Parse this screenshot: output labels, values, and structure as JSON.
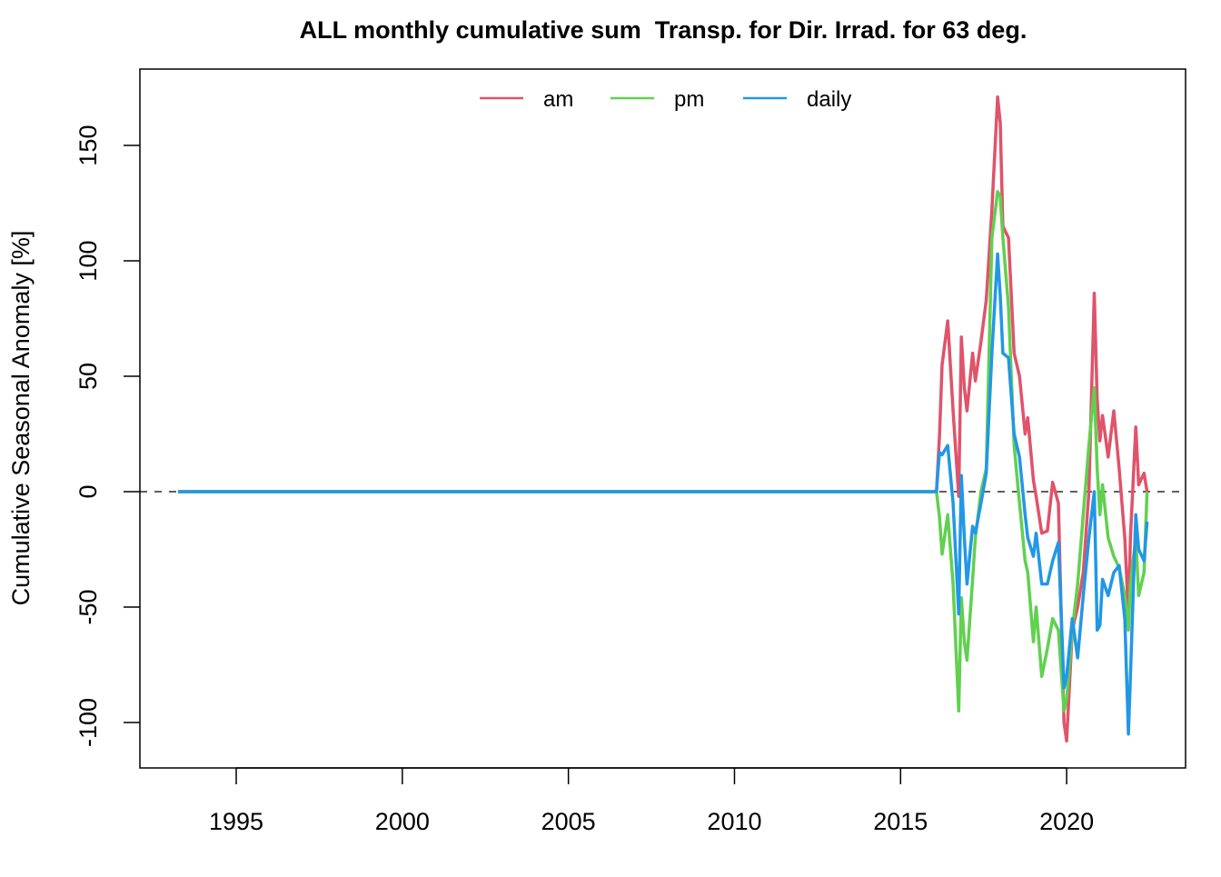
{
  "chart_data": {
    "type": "line",
    "title": "ALL monthly cumulative sum  Transp. for Dir. Irrad. for 63 deg.",
    "y_label": "Cumulative Seasonal Anomaly [%]",
    "x": [
      1993.25,
      2016.08,
      2016.17,
      2016.25,
      2016.42,
      2016.58,
      2016.75,
      2016.83,
      2016.92,
      2017.0,
      2017.17,
      2017.25,
      2017.42,
      2017.58,
      2017.75,
      2017.92,
      2018.0,
      2018.08,
      2018.25,
      2018.42,
      2018.58,
      2018.75,
      2018.83,
      2019.0,
      2019.08,
      2019.25,
      2019.42,
      2019.58,
      2019.75,
      2019.92,
      2020.0,
      2020.17,
      2020.33,
      2020.5,
      2020.67,
      2020.83,
      2020.92,
      2021.0,
      2021.08,
      2021.25,
      2021.42,
      2021.58,
      2021.75,
      2021.86,
      2021.92,
      2022.08,
      2022.17,
      2022.33,
      2022.42
    ],
    "series": [
      {
        "name": "am",
        "color": "#df536b",
        "values": [
          0,
          0,
          24,
          55,
          74,
          35,
          -2,
          67,
          45,
          35,
          60,
          48,
          65,
          83,
          122,
          171,
          160,
          115,
          110,
          60,
          50,
          25,
          32,
          5,
          -2,
          -18,
          -17,
          4,
          -5,
          -100,
          -108,
          -60,
          -50,
          -35,
          0,
          86,
          40,
          22,
          33,
          15,
          35,
          10,
          -20,
          -53,
          -20,
          28,
          3,
          8,
          0
        ]
      },
      {
        "name": "pm",
        "color": "#61d04f",
        "values": [
          0,
          0,
          -11,
          -27,
          -10,
          -40,
          -95,
          -46,
          -65,
          -73,
          -38,
          -20,
          0,
          10,
          110,
          130,
          128,
          110,
          80,
          20,
          -5,
          -30,
          -35,
          -65,
          -50,
          -80,
          -68,
          -55,
          -60,
          -95,
          -90,
          -60,
          -40,
          -10,
          20,
          45,
          10,
          -10,
          3,
          -20,
          -28,
          -33,
          -45,
          -60,
          -40,
          -20,
          -45,
          -35,
          0
        ]
      },
      {
        "name": "daily",
        "color": "#2297e6",
        "values": [
          0,
          0,
          17,
          16,
          20,
          -5,
          -53,
          7,
          -20,
          -40,
          -15,
          -18,
          -5,
          8,
          60,
          103,
          85,
          60,
          58,
          25,
          15,
          -10,
          -20,
          -28,
          -18,
          -40,
          -40,
          -30,
          -22,
          -85,
          -80,
          -55,
          -72,
          -45,
          -20,
          0,
          -60,
          -58,
          -38,
          -45,
          -35,
          -32,
          -55,
          -105,
          -80,
          -10,
          -25,
          -30,
          -13
        ]
      }
    ],
    "xlim": [
      1992.1,
      2023.58
    ],
    "ylim": [
      -119.7,
      183.1
    ],
    "xticks": [
      1995,
      2000,
      2005,
      2010,
      2015,
      2020
    ],
    "yticks": [
      -100,
      -50,
      0,
      50,
      100,
      150
    ],
    "hline": 0,
    "legend": "top"
  }
}
